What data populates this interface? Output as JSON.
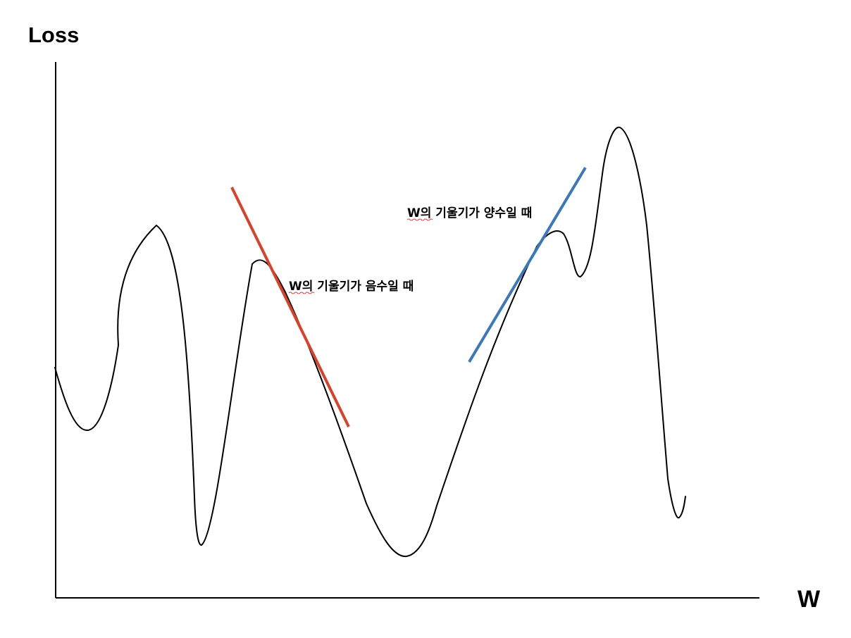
{
  "y_axis_title": "Loss",
  "x_axis_title": "W",
  "annotations": {
    "negative_slope": "W의 기울기가 음수일 때",
    "positive_slope": "W의 기울기가 양수일 때"
  },
  "colors": {
    "curve": "#000000",
    "axes": "#000000",
    "negative_tangent": "#d9412b",
    "positive_tangent": "#3a78b9",
    "spellcheck_underline": "#e0393e"
  }
}
